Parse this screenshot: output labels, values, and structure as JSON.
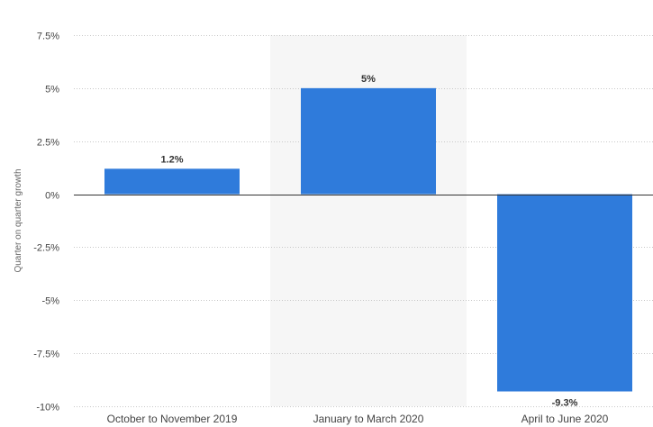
{
  "chart_data": {
    "type": "bar",
    "categories": [
      "October to November 2019",
      "January to March 2020",
      "April to June 2020"
    ],
    "values": [
      1.2,
      5,
      -9.3
    ],
    "value_labels": [
      "1.2%",
      "5%",
      "-9.3%"
    ],
    "ylabel": "Quarter on quarter growth",
    "ylim": [
      -10,
      7.5
    ],
    "yticks": [
      7.5,
      5,
      2.5,
      0,
      -2.5,
      -5,
      -7.5,
      -10
    ],
    "ytick_labels": [
      "7.5%",
      "5%",
      "2.5%",
      "0%",
      "-2.5%",
      "-5%",
      "-7.5%",
      "-10%"
    ],
    "highlighted_category_index": 1,
    "grid": true,
    "colors": {
      "bar": "#2f7bdb",
      "highlight_band": "#f6f6f6",
      "grid": "#c8c8c8",
      "zero_line": "#333333",
      "text": "#444444"
    }
  }
}
